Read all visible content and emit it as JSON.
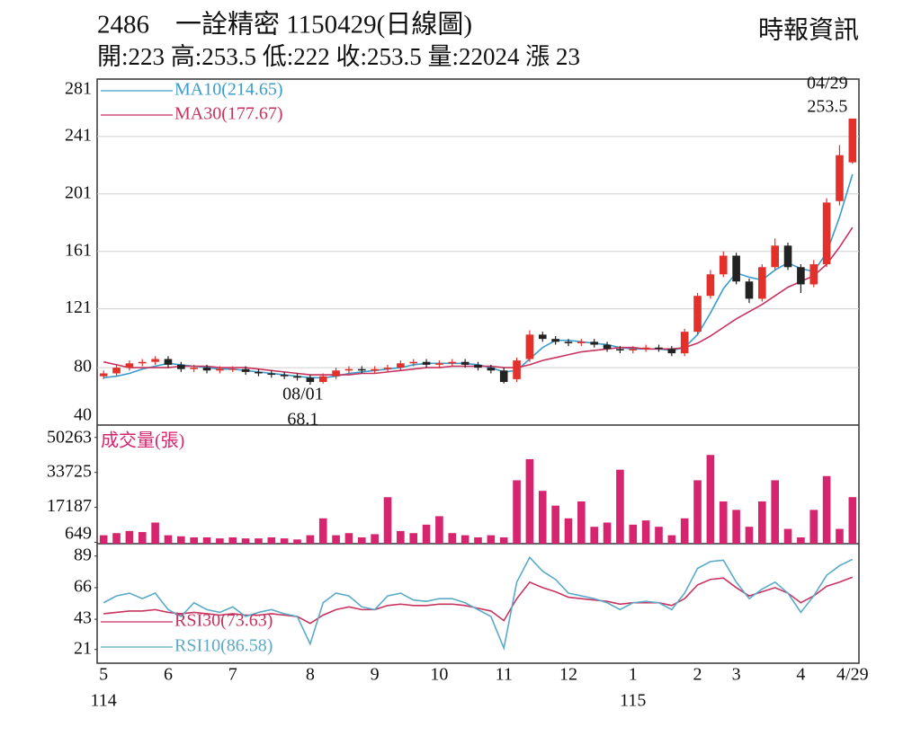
{
  "chart_data": [
    {
      "type": "candlestick",
      "title": "2486　一詮精密 1150429(日線圖)",
      "source": "時報資訊",
      "subtitle": "開:223 高:253.5 低:222 收:253.5 量:22024 漲 23",
      "categories": [
        "5",
        null,
        null,
        null,
        null,
        "6",
        null,
        null,
        null,
        null,
        "7",
        null,
        null,
        null,
        null,
        null,
        "8",
        null,
        null,
        null,
        null,
        "9",
        null,
        null,
        null,
        null,
        "10",
        null,
        null,
        null,
        null,
        "11",
        null,
        null,
        null,
        null,
        "12",
        null,
        null,
        null,
        null,
        "1",
        null,
        null,
        null,
        null,
        "2",
        null,
        null,
        "3",
        null,
        null,
        null,
        null,
        "4",
        null,
        null,
        null,
        "4/29"
      ],
      "year_labels": [
        "114",
        null,
        null,
        null,
        null,
        null,
        null,
        null,
        null,
        null,
        null,
        null,
        null,
        null,
        null,
        null,
        null,
        null,
        null,
        null,
        null,
        null,
        null,
        null,
        null,
        null,
        null,
        null,
        null,
        null,
        null,
        null,
        null,
        null,
        null,
        null,
        null,
        null,
        null,
        null,
        null,
        "115",
        null,
        null,
        null,
        null,
        null,
        null,
        null,
        null,
        null,
        null,
        null,
        null,
        null,
        null,
        null,
        null,
        null
      ],
      "open": [
        74,
        76,
        80,
        83,
        84,
        86,
        82,
        79,
        80,
        78,
        79,
        79,
        77,
        76,
        75,
        74,
        73,
        70,
        74,
        78,
        79,
        78,
        79,
        80,
        83,
        84,
        82,
        83,
        84,
        82,
        80,
        78,
        72,
        86,
        103,
        100,
        98,
        97,
        98,
        96,
        93,
        92,
        93,
        94,
        93,
        90,
        105,
        130,
        145,
        158,
        140,
        128,
        150,
        165,
        150,
        138,
        152,
        196,
        223
      ],
      "high": [
        78,
        82,
        85,
        86,
        88,
        88,
        84,
        82,
        82,
        81,
        81,
        81,
        79,
        78,
        77,
        76,
        75,
        76,
        80,
        81,
        81,
        81,
        82,
        85,
        86,
        86,
        85,
        86,
        86,
        84,
        82,
        80,
        87,
        106,
        105,
        102,
        100,
        100,
        100,
        98,
        95,
        95,
        96,
        96,
        95,
        107,
        132,
        148,
        161,
        160,
        142,
        152,
        170,
        167,
        152,
        155,
        198,
        235,
        253.5
      ],
      "low": [
        72,
        74,
        78,
        81,
        82,
        80,
        77,
        77,
        76,
        76,
        77,
        75,
        74,
        73,
        72,
        71,
        68.1,
        69,
        72,
        76,
        76,
        76,
        77,
        78,
        81,
        80,
        80,
        81,
        80,
        78,
        76,
        69,
        70,
        84,
        98,
        96,
        95,
        95,
        94,
        91,
        90,
        90,
        91,
        91,
        88,
        88,
        103,
        128,
        143,
        138,
        125,
        126,
        148,
        148,
        132,
        136,
        150,
        193,
        222
      ],
      "close": [
        76,
        80,
        83,
        84,
        86,
        82,
        79,
        80,
        78,
        79,
        79,
        77,
        76,
        75,
        74,
        73,
        70,
        74,
        78,
        79,
        78,
        79,
        80,
        83,
        84,
        82,
        83,
        84,
        82,
        80,
        78,
        70,
        85,
        103,
        100,
        98,
        97,
        98,
        96,
        93,
        92,
        93,
        94,
        93,
        90,
        105,
        130,
        145,
        158,
        140,
        128,
        150,
        165,
        150,
        138,
        152,
        195,
        228,
        253.5
      ],
      "up_color": "#e3302b",
      "down_color": "#222222",
      "ylim": [
        40,
        281
      ],
      "yticks": [
        281,
        241,
        201,
        161,
        121,
        80,
        40
      ],
      "grid": true,
      "series": [
        {
          "name": "MA10(214.65)",
          "color": "#3a9ccc",
          "values": [
            73,
            74,
            76,
            79,
            81,
            83,
            82,
            81,
            80,
            79,
            79,
            78,
            77,
            76,
            75,
            74,
            73,
            73,
            74,
            76,
            77,
            78,
            79,
            80,
            82,
            83,
            83,
            83,
            83,
            82,
            80,
            77,
            78,
            86,
            94,
            99,
            99,
            98,
            97,
            96,
            94,
            93,
            93,
            93,
            92,
            94,
            103,
            118,
            135,
            146,
            143,
            141,
            148,
            153,
            149,
            147,
            160,
            185,
            214.65
          ]
        },
        {
          "name": "MA30(177.67)",
          "color": "#c8325f",
          "values": [
            84,
            82,
            80,
            80,
            80,
            80,
            81,
            81,
            81,
            80,
            80,
            80,
            79,
            78,
            77,
            76,
            75,
            75,
            75,
            75,
            76,
            76,
            77,
            78,
            79,
            80,
            80,
            81,
            81,
            81,
            81,
            80,
            80,
            82,
            85,
            87,
            89,
            91,
            92,
            93,
            94,
            94,
            93,
            93,
            93,
            94,
            97,
            102,
            108,
            114,
            119,
            124,
            130,
            136,
            140,
            144,
            152,
            164,
            177.67
          ]
        }
      ],
      "annotations": [
        {
          "date": "04/29",
          "value": 253.5
        },
        {
          "date": "08/01",
          "value": 68.1
        }
      ]
    },
    {
      "type": "bar",
      "title": "成交量(張)",
      "color": "#d6246e",
      "values": [
        4000,
        5000,
        6000,
        5500,
        10000,
        4000,
        3500,
        3000,
        3000,
        2500,
        3000,
        2500,
        2500,
        3000,
        2500,
        2000,
        4000,
        12000,
        4000,
        5000,
        3000,
        4500,
        22000,
        6000,
        5000,
        9000,
        13000,
        5000,
        4000,
        3000,
        4000,
        3000,
        30000,
        40000,
        25000,
        18000,
        12000,
        20000,
        8000,
        10000,
        35000,
        9000,
        11000,
        8000,
        4000,
        12000,
        30000,
        42000,
        20000,
        16000,
        8000,
        20000,
        30000,
        7000,
        3000,
        16000,
        32000,
        7000,
        22024
      ],
      "ylim": [
        0,
        54000
      ],
      "yticks": [
        50263,
        33725,
        17187,
        649
      ]
    },
    {
      "type": "line",
      "series": [
        {
          "name": "RSI30(73.63)",
          "color": "#c8325f",
          "values": [
            47,
            48,
            49,
            49,
            50,
            48,
            47,
            48,
            47,
            46,
            47,
            46,
            46,
            47,
            46,
            45,
            40,
            46,
            50,
            52,
            50,
            50,
            53,
            54,
            53,
            53,
            54,
            54,
            53,
            51,
            49,
            42,
            58,
            70,
            66,
            63,
            59,
            58,
            57,
            56,
            54,
            55,
            55,
            55,
            53,
            58,
            68,
            72,
            73,
            66,
            60,
            63,
            66,
            62,
            55,
            60,
            67,
            70,
            73.63
          ]
        },
        {
          "name": "RSI10(86.58)",
          "color": "#5aaac8",
          "values": [
            55,
            60,
            62,
            58,
            62,
            50,
            45,
            55,
            50,
            48,
            52,
            45,
            48,
            50,
            47,
            45,
            25,
            55,
            62,
            60,
            52,
            50,
            60,
            62,
            57,
            56,
            58,
            58,
            55,
            50,
            45,
            22,
            70,
            88,
            78,
            72,
            62,
            60,
            58,
            55,
            50,
            55,
            56,
            55,
            50,
            62,
            80,
            85,
            86,
            70,
            58,
            65,
            70,
            62,
            48,
            60,
            75,
            82,
            86.58
          ]
        }
      ],
      "ylim": [
        11,
        98
      ],
      "yticks": [
        89,
        66,
        43,
        21
      ]
    }
  ]
}
